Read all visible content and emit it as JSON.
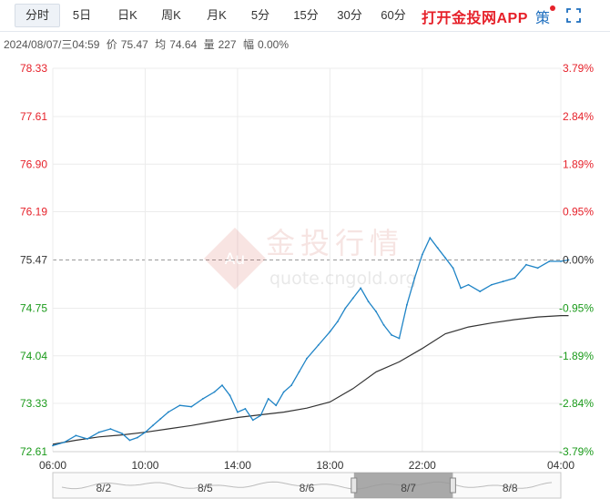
{
  "tabs": [
    "分时",
    "5日",
    "日K",
    "周K",
    "月K",
    "5分",
    "15分",
    "30分",
    "60分"
  ],
  "active_tab": "分时",
  "promo_label": "打开金投网APP",
  "strategy_label": "策",
  "icons": {
    "fullscreen": "fullscreen-icon",
    "watermark": "gold-logo-icon"
  },
  "info": {
    "datetime": "2024/08/07/三04:59",
    "price_label": "价",
    "price": "75.47",
    "avg_label": "均",
    "avg": "74.64",
    "volume_label": "量",
    "volume": "227",
    "range_label": "幅",
    "change": "0.00%"
  },
  "watermark": {
    "title": "金投行情",
    "url": "quote.cngold.org",
    "badge": "Au"
  },
  "colors": {
    "up": "#e6212a",
    "down": "#1a9a1a",
    "price_line": "#1f84c6",
    "avg_line": "#333333",
    "neutral": "#333333"
  },
  "chart_data": {
    "type": "line",
    "y_ticks": [
      "78.33",
      "77.61",
      "76.90",
      "76.19",
      "75.47",
      "74.75",
      "74.04",
      "73.33",
      "72.61"
    ],
    "pct_ticks": [
      "3.79%",
      "2.84%",
      "1.89%",
      "0.95%",
      "0.00%",
      "-0.95%",
      "-1.89%",
      "-2.84%",
      "-3.79%"
    ],
    "reference_price": 75.47,
    "ylim": [
      72.61,
      78.33
    ],
    "x_ticks": [
      "06:00",
      "10:00",
      "14:00",
      "18:00",
      "22:00",
      "04:00"
    ],
    "series": [
      {
        "role": "price",
        "x": [
          "06:00",
          "06:30",
          "07:00",
          "07:30",
          "08:00",
          "08:30",
          "09:00",
          "09:20",
          "09:40",
          "10:00",
          "10:20",
          "10:40",
          "11:00",
          "11:30",
          "12:00",
          "12:30",
          "13:00",
          "13:20",
          "13:40",
          "14:00",
          "14:20",
          "14:40",
          "15:00",
          "15:20",
          "15:40",
          "16:00",
          "16:20",
          "16:40",
          "17:00",
          "17:30",
          "18:00",
          "18:20",
          "18:40",
          "19:00",
          "19:20",
          "19:40",
          "20:00",
          "20:20",
          "20:40",
          "21:00",
          "21:20",
          "21:40",
          "22:00",
          "22:20",
          "22:40",
          "23:00",
          "23:20",
          "23:40",
          "00:00",
          "00:30",
          "01:00",
          "01:30",
          "02:00",
          "02:30",
          "03:00",
          "03:30",
          "04:00",
          "04:20"
        ],
        "values": [
          72.7,
          72.75,
          72.85,
          72.8,
          72.9,
          72.95,
          72.88,
          72.78,
          72.82,
          72.9,
          73.0,
          73.1,
          73.2,
          73.3,
          73.28,
          73.4,
          73.5,
          73.6,
          73.45,
          73.2,
          73.25,
          73.08,
          73.15,
          73.4,
          73.3,
          73.5,
          73.6,
          73.8,
          74.0,
          74.2,
          74.4,
          74.55,
          74.75,
          74.9,
          75.05,
          74.85,
          74.7,
          74.5,
          74.35,
          74.3,
          74.8,
          75.2,
          75.55,
          75.8,
          75.65,
          75.5,
          75.35,
          75.05,
          75.1,
          75.0,
          75.1,
          75.15,
          75.2,
          75.4,
          75.35,
          75.45,
          75.45,
          75.47
        ]
      },
      {
        "role": "average",
        "x": [
          "06:00",
          "07:00",
          "08:00",
          "09:00",
          "10:00",
          "11:00",
          "12:00",
          "13:00",
          "14:00",
          "15:00",
          "16:00",
          "17:00",
          "18:00",
          "19:00",
          "20:00",
          "21:00",
          "22:00",
          "23:00",
          "00:00",
          "01:00",
          "02:00",
          "03:00",
          "04:00",
          "04:20"
        ],
        "values": [
          72.72,
          72.78,
          72.83,
          72.86,
          72.9,
          72.95,
          73.0,
          73.06,
          73.12,
          73.16,
          73.2,
          73.26,
          73.35,
          73.55,
          73.8,
          73.95,
          74.15,
          74.37,
          74.47,
          74.53,
          74.58,
          74.62,
          74.64,
          74.64
        ]
      }
    ],
    "navigator": {
      "dates": [
        "8/2",
        "8/5",
        "8/6",
        "8/7",
        "8/8"
      ],
      "selected": "8/7"
    }
  }
}
